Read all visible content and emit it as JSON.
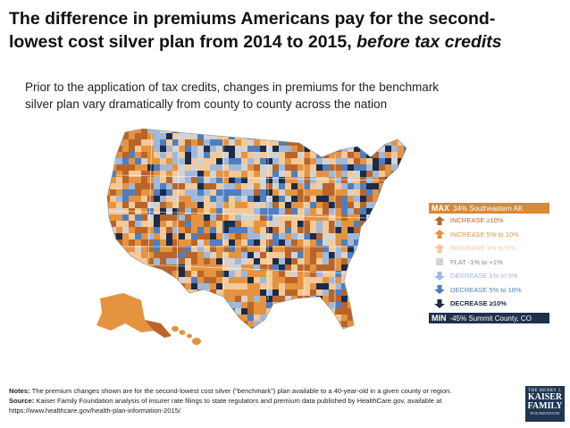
{
  "title": {
    "line1": "The difference in premiums Americans pay for the second-",
    "line2_plain": "lowest cost silver plan from 2014 to 2015, ",
    "line2_italic": "before tax credits"
  },
  "subtitle": {
    "line1": "Prior to the application of tax credits, changes in premiums for the benchmark",
    "line2": "silver plan vary dramatically from county to county across the nation"
  },
  "legend": {
    "max_tag": "MAX",
    "max_text": "34% Southeastern AK",
    "min_tag": "MIN",
    "min_text": "-45% Summit County, CO",
    "items": [
      {
        "label": "INCREASE ≥10%",
        "color": "#b9652a",
        "icon": "arrow-up-icon"
      },
      {
        "label": "INCREASE 5% to 10%",
        "color": "#e6933f",
        "icon": "arrow-up-icon"
      },
      {
        "label": "INCREASE 1% to 5%",
        "color": "#f3c999",
        "icon": "arrow-up-icon"
      },
      {
        "label": "FLAT -1% to +1%",
        "color": "#d3d3d3",
        "icon": "square-icon"
      },
      {
        "label": "DECREASE 1% to 5%",
        "color": "#9fb9dc",
        "icon": "arrow-down-icon"
      },
      {
        "label": "DECREASE 5% to 10%",
        "color": "#4d7fc0",
        "icon": "arrow-down-icon"
      },
      {
        "label": "DECREASE ≥10%",
        "color": "#1b2b4a",
        "icon": "arrow-down-icon"
      }
    ]
  },
  "map_colors": {
    "inc_high": "#b9652a",
    "inc_mid": "#e6933f",
    "inc_low": "#f3c999",
    "flat": "#d3d3d3",
    "dec_low": "#9fb9dc",
    "dec_mid": "#4d7fc0",
    "dec_high": "#1b2b4a"
  },
  "notes": {
    "notes_label": "Notes:",
    "notes_text": " The premium changes shown are for the second-lowest cost silver (“benchmark”) plan available to a 40-year-old in a given county or region.",
    "source_label": "Source:",
    "source_text": "  Kaiser Family Foundation analysis of insurer rate filings to state regulators and premium data published by HealthCare.gov, available at",
    "url": "https://www.healthcare.gov/health-plan-information-2015/"
  },
  "logo": {
    "line1": "THE HENRY J.",
    "line2": "KAISER",
    "line3": "FAMILY",
    "line4": "FOUNDATION"
  }
}
